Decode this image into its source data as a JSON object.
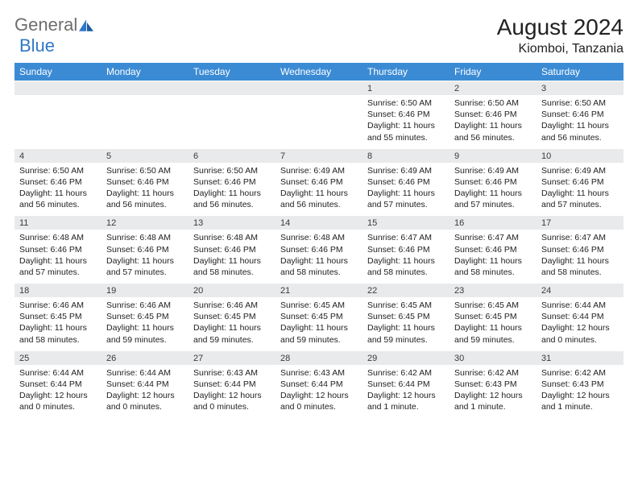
{
  "logo": {
    "text1": "General",
    "text2": "Blue"
  },
  "title": "August 2024",
  "location": "Kiomboi, Tanzania",
  "colors": {
    "header_bg": "#3b8bd4",
    "header_fg": "#ffffff",
    "daynum_bg": "#e9eaeb",
    "logo_gray": "#6e6e6e",
    "logo_blue": "#3178c6"
  },
  "weekdays": [
    "Sunday",
    "Monday",
    "Tuesday",
    "Wednesday",
    "Thursday",
    "Friday",
    "Saturday"
  ],
  "weeks": [
    {
      "days": [
        null,
        null,
        null,
        null,
        {
          "n": "1",
          "sr": "6:50 AM",
          "ss": "6:46 PM",
          "dl": "11 hours and 55 minutes."
        },
        {
          "n": "2",
          "sr": "6:50 AM",
          "ss": "6:46 PM",
          "dl": "11 hours and 56 minutes."
        },
        {
          "n": "3",
          "sr": "6:50 AM",
          "ss": "6:46 PM",
          "dl": "11 hours and 56 minutes."
        }
      ]
    },
    {
      "days": [
        {
          "n": "4",
          "sr": "6:50 AM",
          "ss": "6:46 PM",
          "dl": "11 hours and 56 minutes."
        },
        {
          "n": "5",
          "sr": "6:50 AM",
          "ss": "6:46 PM",
          "dl": "11 hours and 56 minutes."
        },
        {
          "n": "6",
          "sr": "6:50 AM",
          "ss": "6:46 PM",
          "dl": "11 hours and 56 minutes."
        },
        {
          "n": "7",
          "sr": "6:49 AM",
          "ss": "6:46 PM",
          "dl": "11 hours and 56 minutes."
        },
        {
          "n": "8",
          "sr": "6:49 AM",
          "ss": "6:46 PM",
          "dl": "11 hours and 57 minutes."
        },
        {
          "n": "9",
          "sr": "6:49 AM",
          "ss": "6:46 PM",
          "dl": "11 hours and 57 minutes."
        },
        {
          "n": "10",
          "sr": "6:49 AM",
          "ss": "6:46 PM",
          "dl": "11 hours and 57 minutes."
        }
      ]
    },
    {
      "days": [
        {
          "n": "11",
          "sr": "6:48 AM",
          "ss": "6:46 PM",
          "dl": "11 hours and 57 minutes."
        },
        {
          "n": "12",
          "sr": "6:48 AM",
          "ss": "6:46 PM",
          "dl": "11 hours and 57 minutes."
        },
        {
          "n": "13",
          "sr": "6:48 AM",
          "ss": "6:46 PM",
          "dl": "11 hours and 58 minutes."
        },
        {
          "n": "14",
          "sr": "6:48 AM",
          "ss": "6:46 PM",
          "dl": "11 hours and 58 minutes."
        },
        {
          "n": "15",
          "sr": "6:47 AM",
          "ss": "6:46 PM",
          "dl": "11 hours and 58 minutes."
        },
        {
          "n": "16",
          "sr": "6:47 AM",
          "ss": "6:46 PM",
          "dl": "11 hours and 58 minutes."
        },
        {
          "n": "17",
          "sr": "6:47 AM",
          "ss": "6:46 PM",
          "dl": "11 hours and 58 minutes."
        }
      ]
    },
    {
      "days": [
        {
          "n": "18",
          "sr": "6:46 AM",
          "ss": "6:45 PM",
          "dl": "11 hours and 58 minutes."
        },
        {
          "n": "19",
          "sr": "6:46 AM",
          "ss": "6:45 PM",
          "dl": "11 hours and 59 minutes."
        },
        {
          "n": "20",
          "sr": "6:46 AM",
          "ss": "6:45 PM",
          "dl": "11 hours and 59 minutes."
        },
        {
          "n": "21",
          "sr": "6:45 AM",
          "ss": "6:45 PM",
          "dl": "11 hours and 59 minutes."
        },
        {
          "n": "22",
          "sr": "6:45 AM",
          "ss": "6:45 PM",
          "dl": "11 hours and 59 minutes."
        },
        {
          "n": "23",
          "sr": "6:45 AM",
          "ss": "6:45 PM",
          "dl": "11 hours and 59 minutes."
        },
        {
          "n": "24",
          "sr": "6:44 AM",
          "ss": "6:44 PM",
          "dl": "12 hours and 0 minutes."
        }
      ]
    },
    {
      "days": [
        {
          "n": "25",
          "sr": "6:44 AM",
          "ss": "6:44 PM",
          "dl": "12 hours and 0 minutes."
        },
        {
          "n": "26",
          "sr": "6:44 AM",
          "ss": "6:44 PM",
          "dl": "12 hours and 0 minutes."
        },
        {
          "n": "27",
          "sr": "6:43 AM",
          "ss": "6:44 PM",
          "dl": "12 hours and 0 minutes."
        },
        {
          "n": "28",
          "sr": "6:43 AM",
          "ss": "6:44 PM",
          "dl": "12 hours and 0 minutes."
        },
        {
          "n": "29",
          "sr": "6:42 AM",
          "ss": "6:44 PM",
          "dl": "12 hours and 1 minute."
        },
        {
          "n": "30",
          "sr": "6:42 AM",
          "ss": "6:43 PM",
          "dl": "12 hours and 1 minute."
        },
        {
          "n": "31",
          "sr": "6:42 AM",
          "ss": "6:43 PM",
          "dl": "12 hours and 1 minute."
        }
      ]
    }
  ],
  "labels": {
    "sunrise": "Sunrise:",
    "sunset": "Sunset:",
    "daylight": "Daylight:"
  }
}
